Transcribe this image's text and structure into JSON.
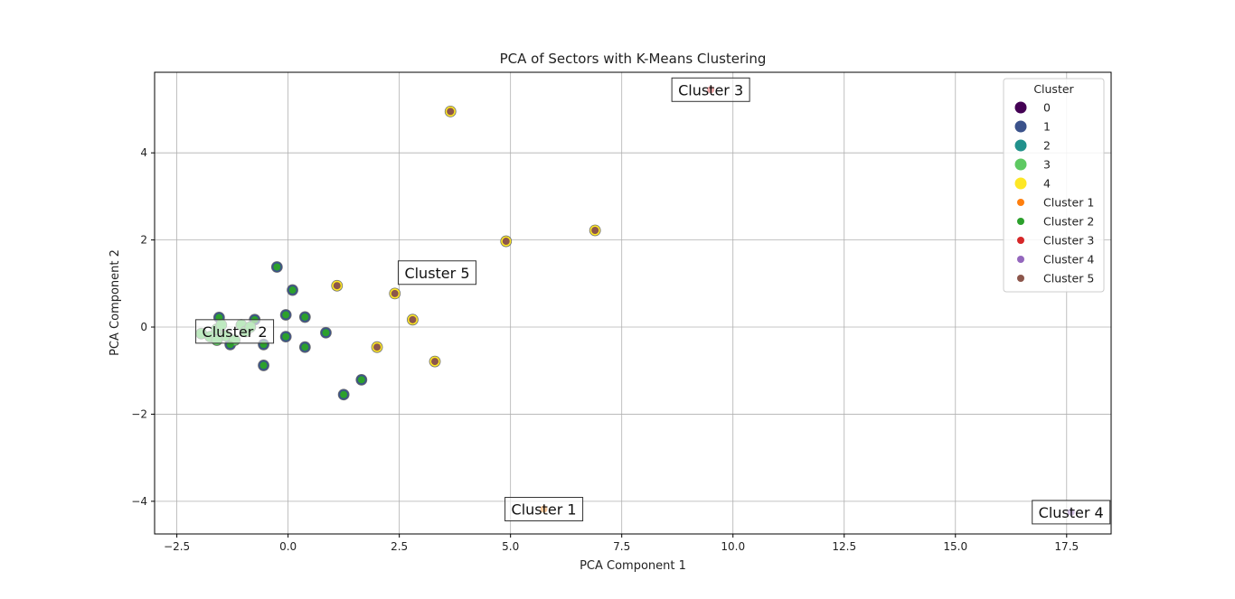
{
  "chart_data": {
    "type": "scatter",
    "title": "PCA of Sectors with K-Means Clustering",
    "xlabel": "PCA Component 1",
    "ylabel": "PCA Component 2",
    "xlim": [
      -3.0,
      18.5
    ],
    "ylim": [
      -4.75,
      5.85
    ],
    "xticks": [
      -2.5,
      0.0,
      2.5,
      5.0,
      7.5,
      10.0,
      12.5,
      15.0,
      17.5
    ],
    "xtick_labels": [
      "−2.5",
      "0.0",
      "2.5",
      "5.0",
      "7.5",
      "10.0",
      "12.5",
      "15.0",
      "17.5"
    ],
    "yticks": [
      -4,
      -2,
      0,
      2,
      4
    ],
    "ytick_labels": [
      "−4",
      "−2",
      "0",
      "2",
      "4"
    ],
    "grid": true,
    "legend_title": "Cluster",
    "legend_position": "top-right",
    "legend": [
      {
        "label": "0",
        "color": "#440154",
        "size": "large"
      },
      {
        "label": "1",
        "color": "#3b528b",
        "size": "large"
      },
      {
        "label": "2",
        "color": "#21918c",
        "size": "large"
      },
      {
        "label": "3",
        "color": "#5ec962",
        "size": "large"
      },
      {
        "label": "4",
        "color": "#fde725",
        "size": "large"
      },
      {
        "label": "Cluster 1",
        "color": "#ff7f0e",
        "size": "small"
      },
      {
        "label": "Cluster 2",
        "color": "#2ca02c",
        "size": "small"
      },
      {
        "label": "Cluster 3",
        "color": "#d62728",
        "size": "small"
      },
      {
        "label": "Cluster 4",
        "color": "#9467bd",
        "size": "small"
      },
      {
        "label": "Cluster 5",
        "color": "#8c564b",
        "size": "small"
      }
    ],
    "kmeans_series": [
      {
        "name": "0",
        "color": "#440154",
        "points": []
      },
      {
        "name": "1",
        "color": "#3b528b",
        "points": [
          [
            -0.25,
            1.38
          ],
          [
            0.1,
            0.85
          ],
          [
            -0.05,
            0.28
          ],
          [
            0.38,
            0.23
          ],
          [
            0.85,
            -0.13
          ],
          [
            -0.05,
            -0.22
          ],
          [
            0.38,
            -0.46
          ],
          [
            -0.55,
            -0.88
          ],
          [
            1.65,
            -1.21
          ],
          [
            1.25,
            -1.55
          ],
          [
            -0.75,
            0.17
          ],
          [
            -1.55,
            0.22
          ],
          [
            -1.3,
            -0.4
          ],
          [
            -0.55,
            -0.4
          ]
        ]
      },
      {
        "name": "2",
        "color": "#21918c",
        "points": []
      },
      {
        "name": "3",
        "color": "#5ec962",
        "points": [
          [
            -1.95,
            -0.15
          ],
          [
            -1.75,
            -0.22
          ],
          [
            -1.6,
            -0.05
          ],
          [
            -1.5,
            0.05
          ],
          [
            -1.4,
            -0.2
          ],
          [
            -1.2,
            -0.3
          ],
          [
            -1.05,
            0.05
          ],
          [
            -0.95,
            -0.1
          ],
          [
            -0.85,
            0.0
          ],
          [
            -1.6,
            -0.3
          ]
        ]
      },
      {
        "name": "4",
        "color": "#fde725",
        "points": [
          [
            3.65,
            4.95
          ],
          [
            6.9,
            2.22
          ],
          [
            4.9,
            1.97
          ],
          [
            1.1,
            0.95
          ],
          [
            2.4,
            0.77
          ],
          [
            2.8,
            0.17
          ],
          [
            2.0,
            -0.46
          ],
          [
            3.3,
            -0.79
          ]
        ]
      }
    ],
    "centroid_series": [
      {
        "name": "Cluster 1",
        "color": "#ff7f0e",
        "points": [
          [
            5.75,
            -4.18
          ]
        ]
      },
      {
        "name": "Cluster 2",
        "color": "#2ca02c",
        "points": [
          [
            -0.25,
            1.38
          ],
          [
            0.1,
            0.85
          ],
          [
            -0.05,
            0.28
          ],
          [
            0.38,
            0.23
          ],
          [
            0.85,
            -0.13
          ],
          [
            -0.05,
            -0.22
          ],
          [
            0.38,
            -0.46
          ],
          [
            -0.55,
            -0.88
          ],
          [
            1.65,
            -1.21
          ],
          [
            1.25,
            -1.55
          ],
          [
            -0.75,
            0.17
          ],
          [
            -1.55,
            0.22
          ],
          [
            -1.3,
            -0.4
          ],
          [
            -0.55,
            -0.4
          ]
        ]
      },
      {
        "name": "Cluster 3",
        "color": "#d62728",
        "points": [
          [
            9.5,
            5.45
          ]
        ]
      },
      {
        "name": "Cluster 4",
        "color": "#9467bd",
        "points": [
          [
            17.6,
            -4.25
          ]
        ]
      },
      {
        "name": "Cluster 5",
        "color": "#8c564b",
        "points": [
          [
            3.65,
            4.95
          ],
          [
            6.9,
            2.22
          ],
          [
            4.9,
            1.97
          ],
          [
            1.1,
            0.95
          ],
          [
            2.4,
            0.77
          ],
          [
            2.8,
            0.17
          ],
          [
            2.0,
            -0.46
          ],
          [
            3.3,
            -0.79
          ]
        ]
      }
    ],
    "annotations": [
      {
        "text": "Cluster 1",
        "x": 5.75,
        "y": -4.18
      },
      {
        "text": "Cluster 2",
        "x": -1.2,
        "y": -0.1
      },
      {
        "text": "Cluster 3",
        "x": 9.5,
        "y": 5.45
      },
      {
        "text": "Cluster 4",
        "x": 17.6,
        "y": -4.25
      },
      {
        "text": "Cluster 5",
        "x": 3.35,
        "y": 1.25
      }
    ]
  }
}
